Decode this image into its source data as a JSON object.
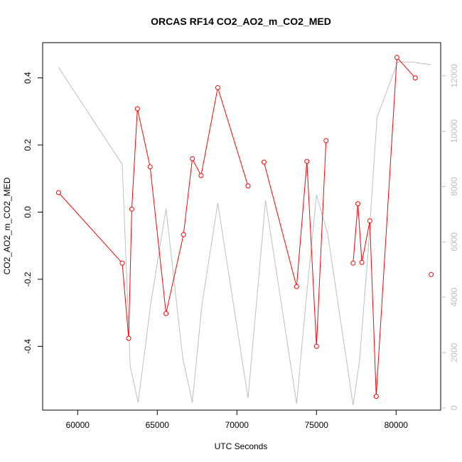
{
  "chart_data": {
    "type": "line",
    "title": "ORCAS RF14 CO2_AO2_m_CO2_MED",
    "xlabel": "UTC Seconds",
    "ylabel": "CO2_AO2_m_CO2_MED",
    "xlim": [
      57800,
      82800
    ],
    "ylim": [
      -0.59,
      0.505
    ],
    "y2lim": [
      -80,
      13200
    ],
    "xticks": [
      60000,
      65000,
      70000,
      75000,
      80000
    ],
    "yticks": [
      -0.4,
      -0.2,
      0.0,
      0.2,
      0.4
    ],
    "yticks_labels": [
      "-0.4",
      "-0.2",
      "0.0",
      "0.2",
      "0.4"
    ],
    "y2ticks": [
      0,
      2000,
      4000,
      6000,
      8000,
      10000,
      12000
    ],
    "colors": {
      "primary": "#ff0000",
      "secondary": "#bebebe"
    },
    "series": [
      {
        "color": "#ff0000",
        "marker": "circle",
        "axis": "left",
        "segments": [
          [
            {
              "x": 58800,
              "y": 0.058
            },
            {
              "x": 62800,
              "y": -0.152
            },
            {
              "x": 63200,
              "y": -0.376
            },
            {
              "x": 63400,
              "y": 0.009
            },
            {
              "x": 63750,
              "y": 0.308
            },
            {
              "x": 64550,
              "y": 0.135
            },
            {
              "x": 65550,
              "y": -0.302
            },
            {
              "x": 66650,
              "y": -0.067
            },
            {
              "x": 67200,
              "y": 0.159
            },
            {
              "x": 67750,
              "y": 0.109
            },
            {
              "x": 68800,
              "y": 0.371
            },
            {
              "x": 70700,
              "y": 0.078
            }
          ],
          [
            {
              "x": 71700,
              "y": 0.149
            },
            {
              "x": 73750,
              "y": -0.222
            },
            {
              "x": 74400,
              "y": 0.151
            },
            {
              "x": 75000,
              "y": -0.4
            },
            {
              "x": 75600,
              "y": 0.213
            }
          ],
          [
            {
              "x": 77300,
              "y": -0.152
            },
            {
              "x": 77600,
              "y": 0.025
            },
            {
              "x": 77850,
              "y": -0.15
            },
            {
              "x": 78350,
              "y": -0.026
            },
            {
              "x": 78750,
              "y": -0.549
            },
            {
              "x": 80050,
              "y": 0.461
            },
            {
              "x": 81200,
              "y": 0.4
            }
          ],
          [
            {
              "x": 82200,
              "y": -0.186
            }
          ]
        ]
      },
      {
        "color": "#bebebe",
        "marker": "none",
        "axis": "right",
        "points": [
          {
            "x": 58800,
            "y": 12300
          },
          {
            "x": 62800,
            "y": 8800
          },
          {
            "x": 63300,
            "y": 1500
          },
          {
            "x": 63800,
            "y": 200
          },
          {
            "x": 64600,
            "y": 3800
          },
          {
            "x": 65550,
            "y": 7200
          },
          {
            "x": 66600,
            "y": 1800
          },
          {
            "x": 67200,
            "y": 200
          },
          {
            "x": 67800,
            "y": 3700
          },
          {
            "x": 68800,
            "y": 7400
          },
          {
            "x": 70700,
            "y": 350
          },
          {
            "x": 71800,
            "y": 7500
          },
          {
            "x": 73750,
            "y": 150
          },
          {
            "x": 74300,
            "y": 3600
          },
          {
            "x": 75000,
            "y": 7700
          },
          {
            "x": 75700,
            "y": 6300
          },
          {
            "x": 77300,
            "y": 100
          },
          {
            "x": 77700,
            "y": 1700
          },
          {
            "x": 78250,
            "y": 5700
          },
          {
            "x": 78800,
            "y": 10500
          },
          {
            "x": 80100,
            "y": 12500
          },
          {
            "x": 81000,
            "y": 12500
          },
          {
            "x": 82200,
            "y": 12400
          }
        ]
      }
    ]
  }
}
